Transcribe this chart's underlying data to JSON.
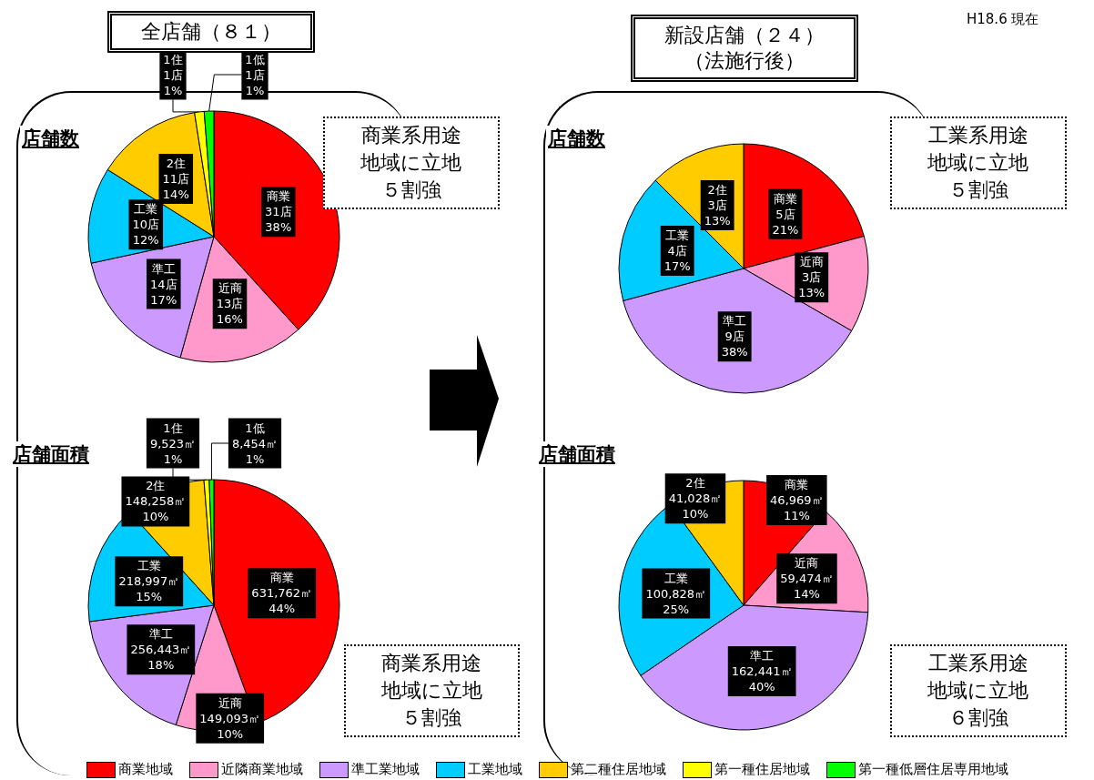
{
  "chart_data": [
    {
      "type": "pie",
      "title": "全店舗（８１）",
      "subtitle": "店舗数",
      "categories": [
        "商業地域",
        "近隣商業地域",
        "準工業地域",
        "工業地域",
        "第二種住居地域",
        "第一種住居地域",
        "第一種低層住居専用地域"
      ],
      "values": [
        31,
        13,
        14,
        10,
        11,
        1,
        1
      ],
      "value_labels": [
        "商業\n31店\n38%",
        "近商\n13店\n16%",
        "準工\n14店\n17%",
        "工業\n10店\n12%",
        "2住\n11店\n14%",
        "1住\n1店\n1%",
        "1低\n1店\n1%"
      ],
      "colors": [
        "#ff0000",
        "#ff99cc",
        "#cc99ff",
        "#00ccff",
        "#ffcc00",
        "#ffff00",
        "#00ff00"
      ],
      "annotations": [
        "商業系用途地域に立地５割強"
      ],
      "legend": "bottom"
    },
    {
      "type": "pie",
      "subtitle": "店舗面積",
      "categories": [
        "商業",
        "近商",
        "準工",
        "工業",
        "2住",
        "1住",
        "1低"
      ],
      "values": [
        631762,
        149093,
        256443,
        218997,
        148258,
        9523,
        8454
      ],
      "value_labels": [
        "631,762㎡\n44%",
        "149,093㎡\n10%",
        "256,443㎡\n18%",
        "218,997㎡\n15%",
        "148,258㎡\n10%",
        "9,523㎡\n1%",
        "8,454㎡\n1%"
      ],
      "colors": [
        "#ff0000",
        "#ff99cc",
        "#cc99ff",
        "#00ccff",
        "#ffcc00",
        "#ffff00",
        "#00ff00"
      ],
      "annotations": [
        "商業系用途地域に立地５割強"
      ]
    },
    {
      "type": "pie",
      "title": "新設店舗（２４）（法施行後）",
      "subtitle": "店舗数",
      "categories": [
        "商業",
        "近商",
        "準工",
        "工業",
        "2住"
      ],
      "values": [
        5,
        3,
        9,
        4,
        3
      ],
      "value_labels": [
        "5店\n21%",
        "3店\n13%",
        "9店\n38%",
        "4店\n17%",
        "3店\n13%"
      ],
      "colors": [
        "#ff0000",
        "#ff99cc",
        "#cc99ff",
        "#00ccff",
        "#ffcc00"
      ],
      "annotations": [
        "工業系用途地域に立地５割強",
        "H18.6 現在"
      ]
    },
    {
      "type": "pie",
      "subtitle": "店舗面積",
      "categories": [
        "商業",
        "近商",
        "準工",
        "工業",
        "2住"
      ],
      "values": [
        46969,
        59474,
        162441,
        100828,
        41028
      ],
      "value_labels": [
        "46,969㎡\n11%",
        "59,474㎡\n14%",
        "162,441㎡\n40%",
        "100,828㎡\n25%",
        "41,028㎡\n10%"
      ],
      "colors": [
        "#ff0000",
        "#ff99cc",
        "#cc99ff",
        "#00ccff",
        "#ffcc00"
      ],
      "annotations": [
        "工業系用途地域に立地６割強"
      ]
    }
  ]
}
